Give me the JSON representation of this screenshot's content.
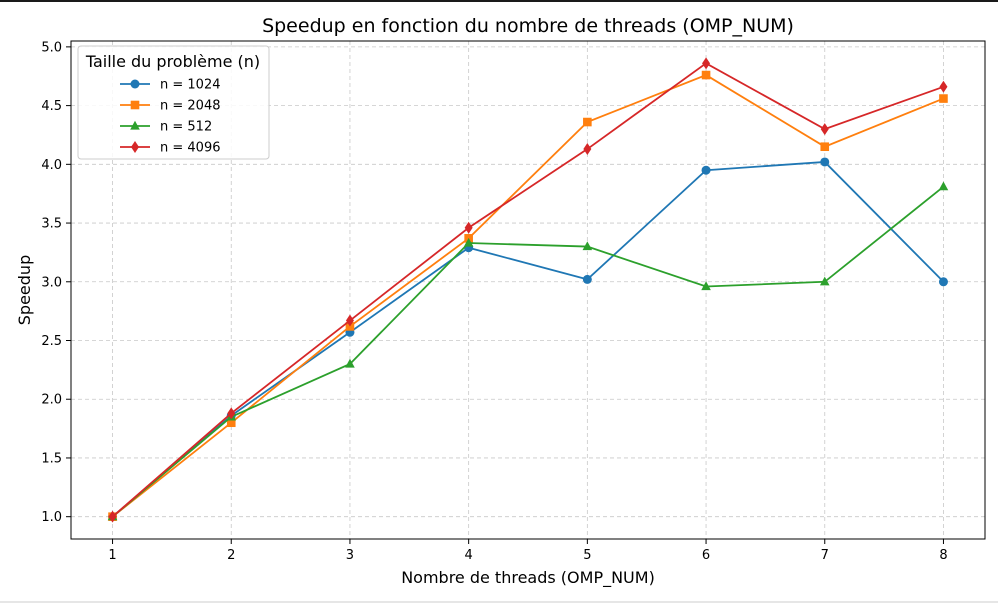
{
  "chart_data": {
    "type": "line",
    "title": "Speedup en fonction du nombre de threads (OMP_NUM)",
    "xlabel": "Nombre de threads (OMP_NUM)",
    "ylabel": "Speedup",
    "x": [
      1,
      2,
      3,
      4,
      5,
      6,
      7,
      8
    ],
    "xlim": [
      0.65,
      8.35
    ],
    "ylim": [
      0.81,
      5.05
    ],
    "xticks": [
      "1",
      "2",
      "3",
      "4",
      "5",
      "6",
      "7",
      "8"
    ],
    "yticks": [
      "1.0",
      "1.5",
      "2.0",
      "2.5",
      "3.0",
      "3.5",
      "4.0",
      "4.5",
      "5.0"
    ],
    "grid": true,
    "legend_title": "Taille du problème (n)",
    "legend_position": "top-left",
    "series": [
      {
        "name": "n = 1024",
        "color": "#1f77b4",
        "marker": "circle",
        "values": [
          1.0,
          1.86,
          2.57,
          3.29,
          3.02,
          3.95,
          4.02,
          3.0
        ]
      },
      {
        "name": "n = 2048",
        "color": "#ff7f0e",
        "marker": "square",
        "values": [
          1.0,
          1.8,
          2.62,
          3.37,
          4.36,
          4.76,
          4.15,
          4.56
        ]
      },
      {
        "name": "n = 512",
        "color": "#2ca02c",
        "marker": "triangle",
        "values": [
          1.0,
          1.85,
          2.3,
          3.33,
          3.3,
          2.96,
          3.0,
          3.81
        ]
      },
      {
        "name": "n = 4096",
        "color": "#d62728",
        "marker": "diamond",
        "values": [
          1.0,
          1.88,
          2.67,
          3.46,
          4.13,
          4.86,
          4.3,
          4.66
        ]
      }
    ]
  }
}
